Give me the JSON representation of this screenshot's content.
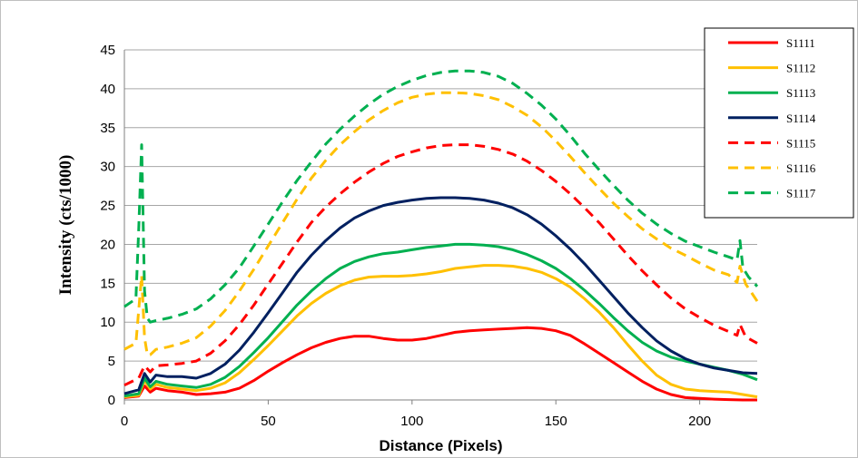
{
  "chart_data": {
    "type": "line",
    "title": "",
    "xlabel": "Distance (Pixels)",
    "ylabel": "Intensity (cts/1000)",
    "xlim": [
      0,
      220
    ],
    "ylim": [
      0,
      45
    ],
    "xticks": [
      "0",
      "50",
      "100",
      "150",
      "200"
    ],
    "yticks": [
      "0",
      "5",
      "10",
      "15",
      "20",
      "25",
      "30",
      "35",
      "40",
      "45"
    ],
    "grid": "horizontal",
    "legend_position": "top-right",
    "series": [
      {
        "name": "S1111",
        "color": "#ff0000",
        "dash": false,
        "x": [
          0,
          5,
          7,
          9,
          11,
          15,
          20,
          25,
          30,
          35,
          40,
          45,
          50,
          55,
          60,
          65,
          70,
          75,
          80,
          85,
          90,
          95,
          100,
          105,
          110,
          115,
          120,
          125,
          130,
          135,
          140,
          145,
          150,
          155,
          160,
          165,
          170,
          175,
          180,
          185,
          190,
          195,
          200,
          205,
          210,
          215,
          220
        ],
        "y": [
          0.3,
          0.5,
          1.8,
          1.0,
          1.5,
          1.2,
          1.0,
          0.7,
          0.8,
          1.0,
          1.5,
          2.5,
          3.7,
          4.8,
          5.8,
          6.7,
          7.4,
          7.9,
          8.2,
          8.2,
          7.9,
          7.7,
          7.7,
          7.9,
          8.3,
          8.7,
          8.9,
          9.0,
          9.1,
          9.2,
          9.3,
          9.2,
          8.9,
          8.3,
          7.2,
          6.0,
          4.8,
          3.6,
          2.4,
          1.4,
          0.7,
          0.3,
          0.2,
          0.1,
          0.05,
          0.0,
          0.0
        ]
      },
      {
        "name": "S1112",
        "color": "#ffc000",
        "dash": false,
        "x": [
          0,
          5,
          7,
          9,
          11,
          15,
          20,
          25,
          30,
          35,
          40,
          45,
          50,
          55,
          60,
          65,
          70,
          75,
          80,
          85,
          90,
          95,
          100,
          105,
          110,
          115,
          120,
          125,
          130,
          135,
          140,
          145,
          150,
          155,
          160,
          165,
          170,
          175,
          180,
          185,
          190,
          195,
          200,
          205,
          210,
          215,
          220
        ],
        "y": [
          0.4,
          0.6,
          2.5,
          1.4,
          2.0,
          1.6,
          1.4,
          1.2,
          1.5,
          2.2,
          3.5,
          5.2,
          7.0,
          8.9,
          10.8,
          12.4,
          13.7,
          14.7,
          15.4,
          15.8,
          15.9,
          15.9,
          16.0,
          16.2,
          16.5,
          16.9,
          17.1,
          17.3,
          17.3,
          17.2,
          16.9,
          16.4,
          15.6,
          14.5,
          13.0,
          11.3,
          9.3,
          7.1,
          5.0,
          3.2,
          2.0,
          1.4,
          1.2,
          1.1,
          1.0,
          0.7,
          0.4
        ]
      },
      {
        "name": "S1113",
        "color": "#00b050",
        "dash": false,
        "x": [
          0,
          5,
          7,
          9,
          11,
          15,
          20,
          25,
          30,
          35,
          40,
          45,
          50,
          55,
          60,
          65,
          70,
          75,
          80,
          85,
          90,
          95,
          100,
          105,
          110,
          115,
          120,
          125,
          130,
          135,
          140,
          145,
          150,
          155,
          160,
          165,
          170,
          175,
          180,
          185,
          190,
          195,
          200,
          205,
          210,
          215,
          220
        ],
        "y": [
          0.5,
          0.8,
          2.8,
          1.7,
          2.4,
          2.0,
          1.8,
          1.6,
          2.0,
          2.9,
          4.3,
          6.1,
          8.0,
          10.1,
          12.2,
          14.0,
          15.6,
          16.9,
          17.8,
          18.4,
          18.8,
          19.0,
          19.3,
          19.6,
          19.8,
          20.0,
          20.0,
          19.9,
          19.7,
          19.3,
          18.7,
          17.9,
          16.9,
          15.6,
          14.1,
          12.4,
          10.6,
          8.9,
          7.4,
          6.3,
          5.5,
          5.0,
          4.6,
          4.2,
          3.8,
          3.3,
          2.6
        ]
      },
      {
        "name": "S1114",
        "color": "#002060",
        "dash": false,
        "x": [
          0,
          5,
          7,
          9,
          11,
          15,
          20,
          25,
          30,
          35,
          40,
          45,
          50,
          55,
          60,
          65,
          70,
          75,
          80,
          85,
          90,
          95,
          100,
          105,
          110,
          115,
          120,
          125,
          130,
          135,
          140,
          145,
          150,
          155,
          160,
          165,
          170,
          175,
          180,
          185,
          190,
          195,
          200,
          205,
          210,
          215,
          220
        ],
        "y": [
          0.8,
          1.3,
          3.4,
          2.3,
          3.2,
          3.0,
          3.0,
          2.8,
          3.4,
          4.6,
          6.4,
          8.7,
          11.2,
          13.8,
          16.4,
          18.6,
          20.5,
          22.1,
          23.4,
          24.3,
          25.0,
          25.4,
          25.7,
          25.9,
          26.0,
          26.0,
          25.9,
          25.7,
          25.3,
          24.7,
          23.8,
          22.6,
          21.1,
          19.4,
          17.5,
          15.4,
          13.3,
          11.2,
          9.3,
          7.6,
          6.3,
          5.3,
          4.6,
          4.1,
          3.8,
          3.5,
          3.4
        ]
      },
      {
        "name": "S1115",
        "color": "#ff0000",
        "dash": true,
        "x": [
          0,
          5,
          7,
          9,
          11,
          15,
          20,
          25,
          30,
          35,
          40,
          45,
          50,
          55,
          60,
          65,
          70,
          75,
          80,
          85,
          90,
          95,
          100,
          105,
          110,
          115,
          120,
          125,
          130,
          135,
          140,
          145,
          150,
          155,
          160,
          165,
          170,
          175,
          180,
          185,
          190,
          195,
          200,
          205,
          210,
          213,
          214,
          216,
          220
        ],
        "y": [
          1.9,
          2.8,
          4.4,
          3.6,
          4.4,
          4.5,
          4.7,
          5.0,
          6.0,
          7.6,
          9.7,
          12.2,
          14.9,
          17.6,
          20.3,
          22.8,
          24.8,
          26.5,
          28.0,
          29.3,
          30.4,
          31.3,
          31.9,
          32.4,
          32.7,
          32.8,
          32.8,
          32.6,
          32.2,
          31.6,
          30.7,
          29.5,
          28.1,
          26.5,
          24.7,
          22.8,
          20.7,
          18.6,
          16.6,
          14.8,
          13.1,
          11.7,
          10.6,
          9.6,
          8.8,
          8.3,
          9.7,
          8.1,
          7.3
        ]
      },
      {
        "name": "S1116",
        "color": "#ffc000",
        "dash": true,
        "x": [
          0,
          4,
          6,
          7,
          8,
          9,
          11,
          15,
          20,
          25,
          30,
          35,
          40,
          45,
          50,
          55,
          60,
          65,
          70,
          75,
          80,
          85,
          90,
          95,
          100,
          105,
          110,
          115,
          120,
          125,
          130,
          135,
          140,
          145,
          150,
          155,
          160,
          165,
          170,
          175,
          180,
          185,
          190,
          195,
          200,
          205,
          210,
          213,
          214,
          216,
          220
        ],
        "y": [
          6.5,
          7.3,
          16.0,
          8.0,
          5.8,
          5.8,
          6.5,
          6.8,
          7.3,
          8.0,
          9.5,
          11.5,
          14.0,
          16.8,
          19.8,
          22.8,
          25.8,
          28.5,
          30.8,
          32.8,
          34.5,
          36.0,
          37.2,
          38.2,
          38.9,
          39.3,
          39.5,
          39.5,
          39.4,
          39.1,
          38.6,
          37.7,
          36.6,
          35.1,
          33.3,
          31.3,
          29.2,
          27.2,
          25.3,
          23.6,
          22.0,
          20.7,
          19.5,
          18.6,
          17.6,
          16.7,
          16.1,
          15.1,
          17.2,
          14.9,
          12.7
        ]
      },
      {
        "name": "S1117",
        "color": "#00b050",
        "dash": true,
        "x": [
          0,
          4,
          5,
          6,
          7,
          8,
          9,
          11,
          15,
          20,
          25,
          30,
          35,
          40,
          45,
          50,
          55,
          60,
          65,
          70,
          75,
          80,
          85,
          90,
          95,
          100,
          105,
          110,
          115,
          120,
          125,
          130,
          135,
          140,
          145,
          150,
          155,
          160,
          165,
          170,
          175,
          180,
          185,
          190,
          195,
          200,
          205,
          210,
          213,
          214,
          215,
          217,
          220
        ],
        "y": [
          12.0,
          13.0,
          22.0,
          32.8,
          14.0,
          10.5,
          10.0,
          10.2,
          10.5,
          11.0,
          11.7,
          13.0,
          14.8,
          17.0,
          19.8,
          22.6,
          25.5,
          28.2,
          30.6,
          32.9,
          34.8,
          36.5,
          38.0,
          39.3,
          40.3,
          41.1,
          41.7,
          42.1,
          42.3,
          42.3,
          42.1,
          41.6,
          40.7,
          39.4,
          37.9,
          36.1,
          34.0,
          31.7,
          29.6,
          27.6,
          25.7,
          24.0,
          22.6,
          21.4,
          20.4,
          19.7,
          19.0,
          18.4,
          18.0,
          20.5,
          17.0,
          15.8,
          14.6
        ]
      }
    ]
  }
}
